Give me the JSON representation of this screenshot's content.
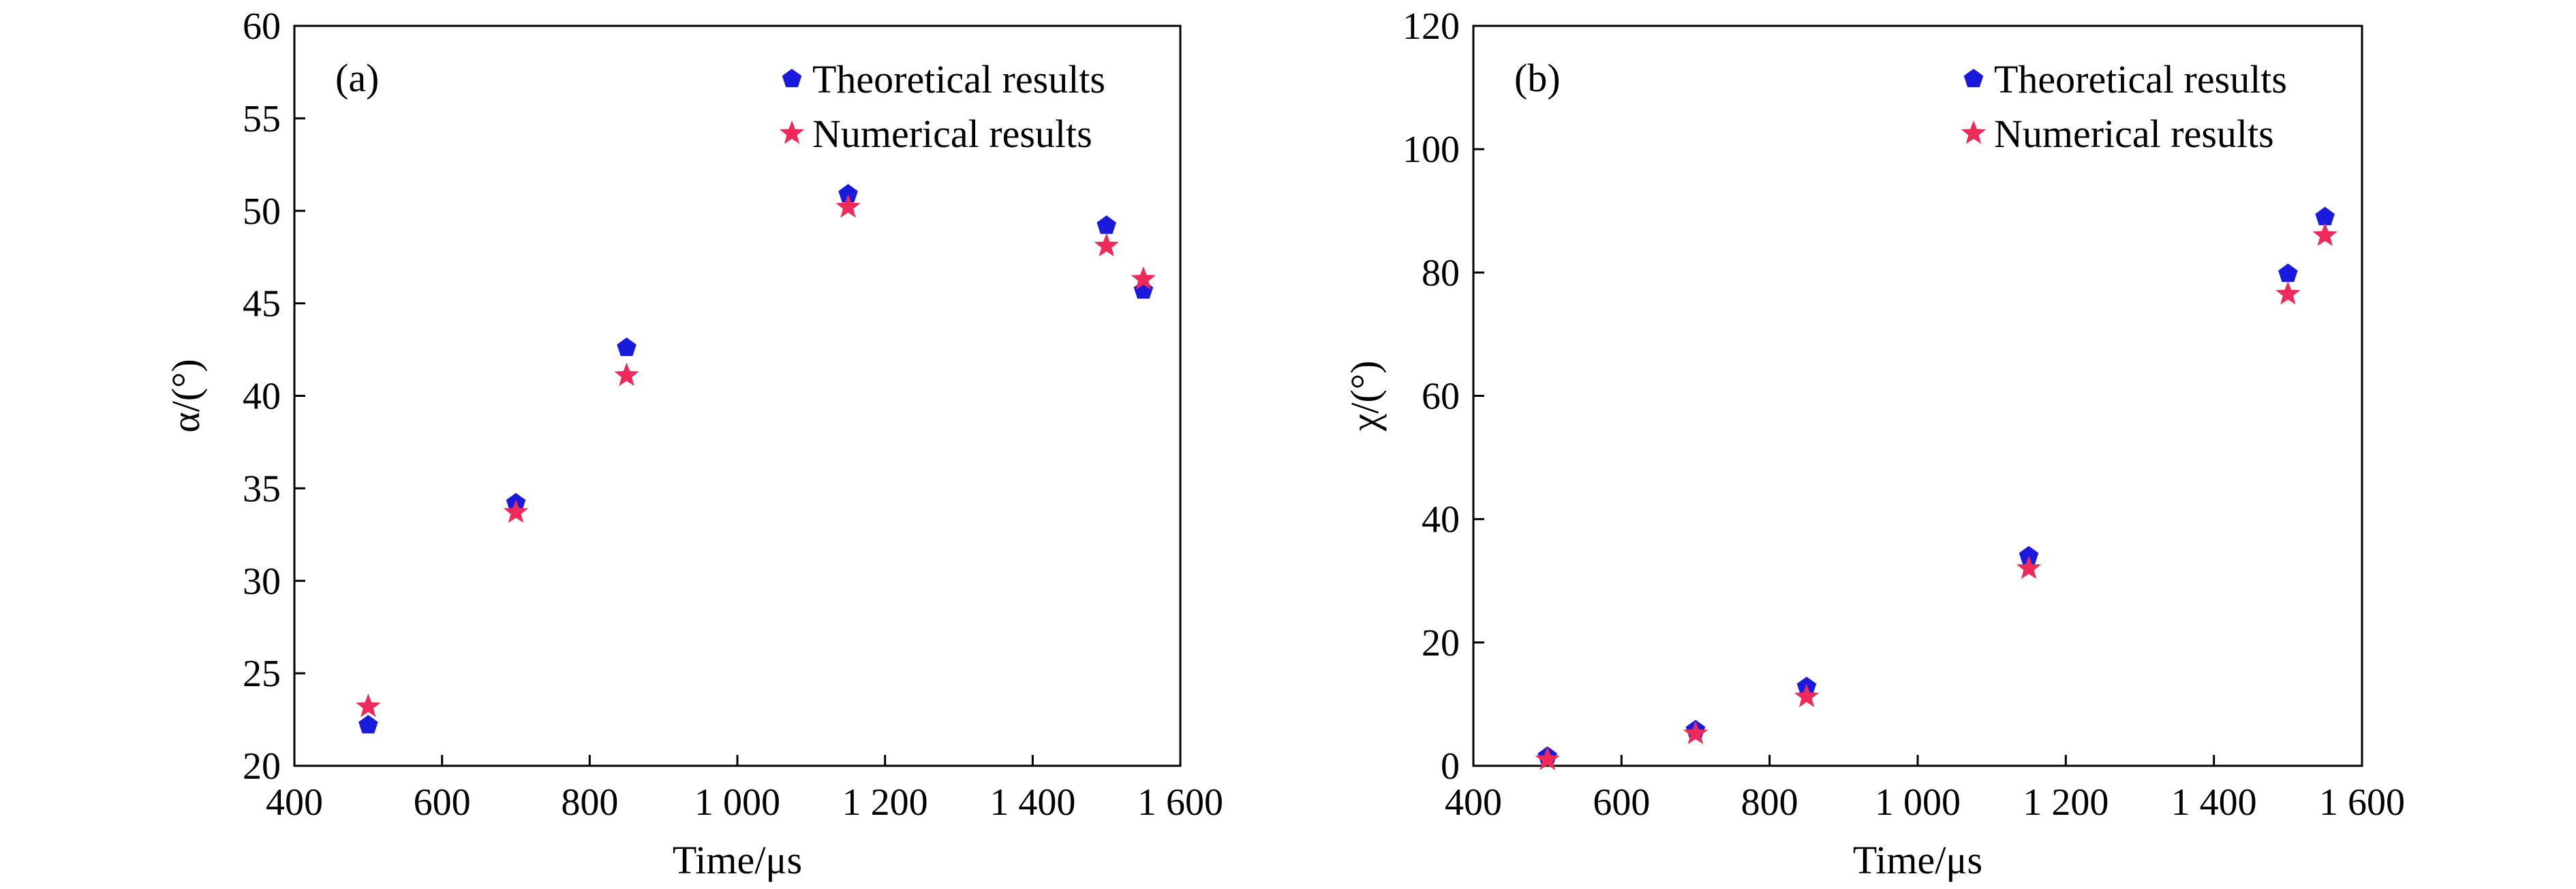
{
  "colors": {
    "theoretical": "#1a1adc",
    "numerical": "#ee2a5a",
    "axis": "#000000"
  },
  "chart_data": [
    {
      "type": "scatter",
      "panel_label": "(a)",
      "xlabel": "Time/μs",
      "ylabel": "α/(°)",
      "xlim": [
        400,
        1600
      ],
      "ylim": [
        20,
        60
      ],
      "xticks": [
        400,
        600,
        800,
        1000,
        1200,
        1400,
        1600
      ],
      "xtick_labels": [
        "400",
        "600",
        "800",
        "1 000",
        "1 200",
        "1 400",
        "1 600"
      ],
      "yticks": [
        20,
        25,
        30,
        35,
        40,
        45,
        50,
        55,
        60
      ],
      "ytick_labels": [
        "20",
        "25",
        "30",
        "35",
        "40",
        "45",
        "50",
        "55",
        "60"
      ],
      "legend_position": "top-right",
      "grid": false,
      "series": [
        {
          "name": "Theoretical results",
          "marker": "pentagon",
          "x": [
            500,
            700,
            850,
            1150,
            1500,
            1550
          ],
          "y": [
            22.2,
            34.2,
            42.6,
            50.9,
            49.2,
            45.7
          ]
        },
        {
          "name": "Numerical results",
          "marker": "star",
          "x": [
            500,
            700,
            850,
            1150,
            1500,
            1550
          ],
          "y": [
            23.2,
            33.7,
            41.1,
            50.2,
            48.1,
            46.3
          ]
        }
      ]
    },
    {
      "type": "scatter",
      "panel_label": "(b)",
      "xlabel": "Time/μs",
      "ylabel": "χ/(°)",
      "xlim": [
        400,
        1600
      ],
      "ylim": [
        0,
        120
      ],
      "xticks": [
        400,
        600,
        800,
        1000,
        1200,
        1400,
        1600
      ],
      "xtick_labels": [
        "400",
        "600",
        "800",
        "1 000",
        "1 200",
        "1 400",
        "1 600"
      ],
      "yticks": [
        0,
        20,
        40,
        60,
        80,
        100,
        120
      ],
      "ytick_labels": [
        "0",
        "20",
        "40",
        "60",
        "80",
        "100",
        "120"
      ],
      "legend_position": "top-right",
      "grid": false,
      "series": [
        {
          "name": "Theoretical results",
          "marker": "pentagon",
          "x": [
            500,
            700,
            850,
            1150,
            1500,
            1550
          ],
          "y": [
            1.5,
            5.8,
            12.8,
            34.0,
            79.8,
            89.0
          ]
        },
        {
          "name": "Numerical results",
          "marker": "star",
          "x": [
            500,
            700,
            850,
            1150,
            1500,
            1550
          ],
          "y": [
            1.0,
            5.2,
            11.2,
            32.0,
            76.5,
            86.0
          ]
        }
      ]
    }
  ]
}
